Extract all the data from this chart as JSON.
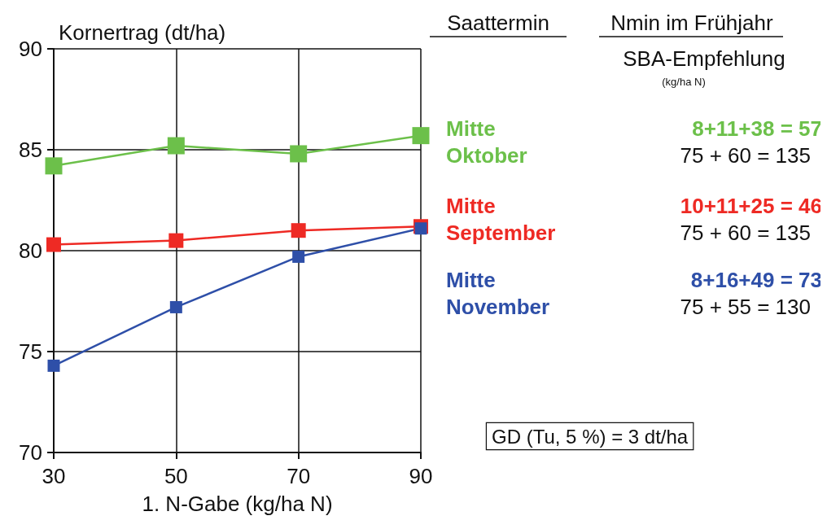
{
  "chart_data": {
    "type": "line",
    "ylabel": "Kornertrag (dt/ha)",
    "xlabel": "1. N-Gabe (kg/ha N)",
    "x": [
      30,
      50,
      70,
      90
    ],
    "xlim": [
      30,
      90
    ],
    "xticks": [
      30,
      50,
      70,
      90
    ],
    "ylim": [
      70,
      90
    ],
    "yticks": [
      70,
      75,
      80,
      85,
      90
    ],
    "series": [
      {
        "name": "Mitte Oktober",
        "color": "#6cc04a",
        "values": [
          84.2,
          85.2,
          84.8,
          85.7
        ]
      },
      {
        "name": "Mitte September",
        "color": "#ee2a24",
        "values": [
          80.3,
          80.5,
          81.0,
          81.2
        ]
      },
      {
        "name": "Mitte November",
        "color": "#2e4fa8",
        "values": [
          74.3,
          77.2,
          79.7,
          81.1
        ]
      }
    ],
    "annotations": [
      "Saattermin",
      "Nmin im Frühjahr",
      "SBA-Empfehlung",
      "(kg/ha N)",
      "8+11+38 = 57",
      "75 + 60 = 135",
      "10+11+25 = 46",
      "75 + 60 = 135",
      "8+16+49 = 73",
      "75 + 55 = 130",
      "GD (Tu, 5 %) = 3 dt/ha"
    ],
    "grid": true,
    "marker": "square",
    "line_style": "solid"
  }
}
